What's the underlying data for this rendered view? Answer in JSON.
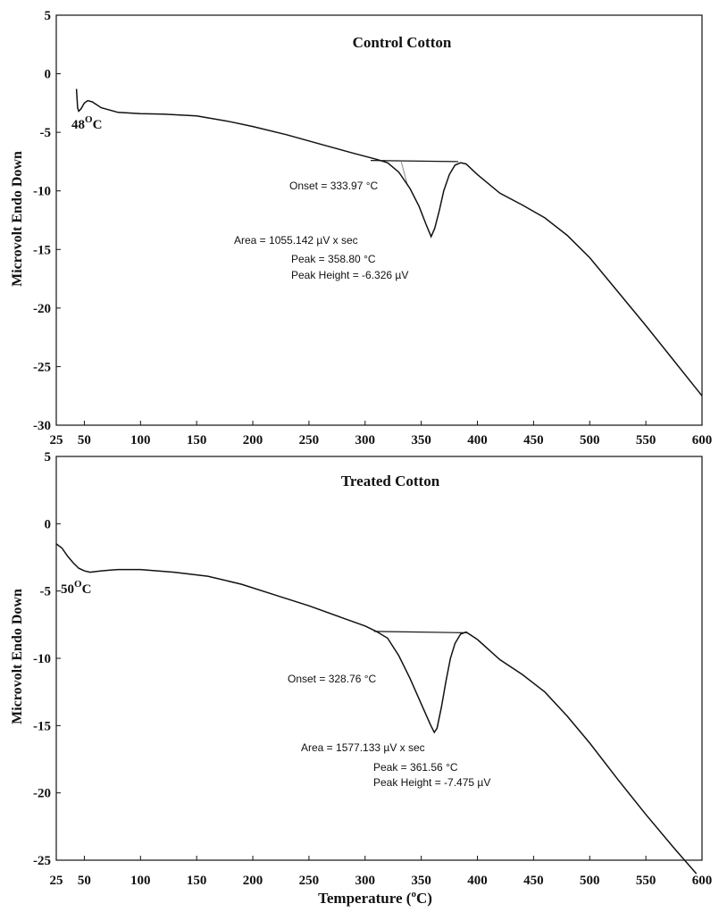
{
  "chart_data": [
    {
      "type": "line",
      "title": "Control Cotton",
      "xlabel": "",
      "ylabel": "Microvolt Endo Down",
      "xlim": [
        25,
        600
      ],
      "ylim": [
        -30,
        5
      ],
      "x_ticks": [
        "25",
        "50",
        "100",
        "150",
        "200",
        "250",
        "300",
        "350",
        "400",
        "450",
        "500",
        "550",
        "600"
      ],
      "y_ticks": [
        "5",
        "0",
        "-5",
        "-10",
        "-15",
        "-20",
        "-25",
        "-30"
      ],
      "grid": false,
      "series": [
        {
          "points": [
            [
              43,
              -1.3
            ],
            [
              44,
              -2.9
            ],
            [
              45,
              -3.2
            ],
            [
              47,
              -3.0
            ],
            [
              50,
              -2.5
            ],
            [
              53,
              -2.3
            ],
            [
              57,
              -2.4
            ],
            [
              65,
              -2.9
            ],
            [
              80,
              -3.3
            ],
            [
              100,
              -3.4
            ],
            [
              120,
              -3.45
            ],
            [
              150,
              -3.6
            ],
            [
              180,
              -4.1
            ],
            [
              200,
              -4.5
            ],
            [
              230,
              -5.2
            ],
            [
              260,
              -6.0
            ],
            [
              290,
              -6.8
            ],
            [
              310,
              -7.3
            ],
            [
              320,
              -7.6
            ],
            [
              330,
              -8.4
            ],
            [
              340,
              -9.8
            ],
            [
              348,
              -11.3
            ],
            [
              354,
              -12.8
            ],
            [
              358.8,
              -13.9
            ],
            [
              362,
              -13.2
            ],
            [
              366,
              -11.7
            ],
            [
              370,
              -10.0
            ],
            [
              375,
              -8.6
            ],
            [
              380,
              -7.8
            ],
            [
              385,
              -7.6
            ],
            [
              390,
              -7.7
            ],
            [
              400,
              -8.6
            ],
            [
              420,
              -10.2
            ],
            [
              440,
              -11.2
            ],
            [
              460,
              -12.3
            ],
            [
              480,
              -13.8
            ],
            [
              500,
              -15.7
            ],
            [
              525,
              -18.6
            ],
            [
              550,
              -21.5
            ],
            [
              575,
              -24.5
            ],
            [
              600,
              -27.5
            ]
          ]
        }
      ],
      "baseline": [
        [
          305,
          -7.4
        ],
        [
          383,
          -7.5
        ]
      ],
      "annotations": {
        "transition": "48",
        "transition_unit": "C",
        "transition_sup": "O",
        "onset": "Onset = 333.97 °C",
        "area": "Area = 1055.142 µV x sec",
        "peak": "Peak = 358.80 °C",
        "peak_height": "Peak Height = -6.326 µV"
      }
    },
    {
      "type": "line",
      "title": "Treated Cotton",
      "xlabel": "Temperature (°C)",
      "xlabel_parts": [
        "Temperature (",
        "o",
        "C)"
      ],
      "ylabel": "Microvolt Endo Down",
      "xlim": [
        25,
        600
      ],
      "ylim": [
        -25,
        5
      ],
      "x_ticks": [
        "25",
        "50",
        "100",
        "150",
        "200",
        "250",
        "300",
        "350",
        "400",
        "450",
        "500",
        "550",
        "600"
      ],
      "y_ticks": [
        "5",
        "0",
        "-5",
        "-10",
        "-15",
        "-20",
        "-25"
      ],
      "grid": false,
      "series": [
        {
          "points": [
            [
              25,
              -1.5
            ],
            [
              30,
              -1.8
            ],
            [
              35,
              -2.4
            ],
            [
              40,
              -2.9
            ],
            [
              45,
              -3.3
            ],
            [
              50,
              -3.5
            ],
            [
              55,
              -3.6
            ],
            [
              65,
              -3.5
            ],
            [
              80,
              -3.4
            ],
            [
              100,
              -3.4
            ],
            [
              130,
              -3.6
            ],
            [
              160,
              -3.9
            ],
            [
              190,
              -4.5
            ],
            [
              220,
              -5.3
            ],
            [
              250,
              -6.1
            ],
            [
              280,
              -7.0
            ],
            [
              300,
              -7.6
            ],
            [
              310,
              -8.0
            ],
            [
              320,
              -8.5
            ],
            [
              330,
              -9.8
            ],
            [
              340,
              -11.5
            ],
            [
              350,
              -13.4
            ],
            [
              358,
              -14.9
            ],
            [
              361.6,
              -15.5
            ],
            [
              364,
              -15.2
            ],
            [
              368,
              -13.6
            ],
            [
              372,
              -11.7
            ],
            [
              376,
              -10.0
            ],
            [
              380,
              -8.9
            ],
            [
              385,
              -8.2
            ],
            [
              390,
              -8.05
            ],
            [
              400,
              -8.6
            ],
            [
              420,
              -10.1
            ],
            [
              440,
              -11.2
            ],
            [
              460,
              -12.5
            ],
            [
              480,
              -14.3
            ],
            [
              500,
              -16.3
            ],
            [
              525,
              -19.0
            ],
            [
              550,
              -21.6
            ],
            [
              575,
              -24.1
            ],
            [
              595,
              -26.0
            ]
          ]
        }
      ],
      "baseline": [
        [
          308,
          -8.0
        ],
        [
          390,
          -8.1
        ]
      ],
      "annotations": {
        "transition": "50",
        "transition_unit": "C",
        "transition_sup": "O",
        "onset": "Onset = 328.76 °C",
        "area": "Area = 1577.133 µV x sec",
        "peak": "Peak = 361.56 °C",
        "peak_height": "Peak Height = -7.475 µV"
      }
    }
  ]
}
